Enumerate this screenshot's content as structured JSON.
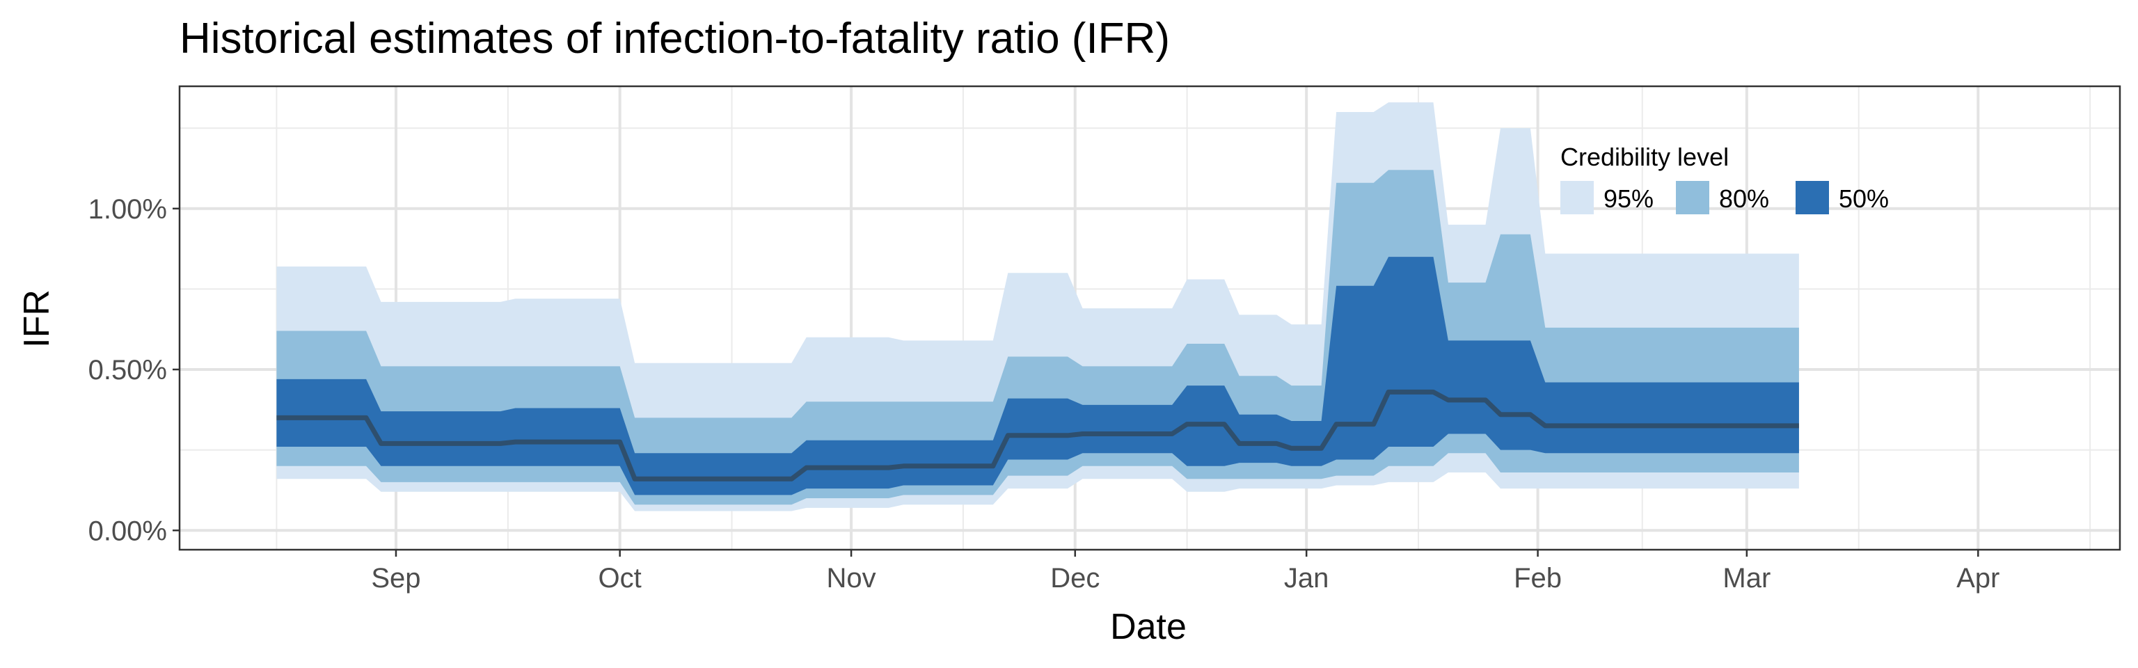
{
  "chart_data": {
    "type": "area",
    "title": "Historical estimates of infection-to-fatality ratio (IFR)",
    "xlabel": "Date",
    "ylabel": "IFR",
    "x_tick_labels": [
      "Sep",
      "Oct",
      "Nov",
      "Dec",
      "Jan",
      "Feb",
      "Mar",
      "Apr"
    ],
    "y_tick_labels": [
      "0.00%",
      "0.50%",
      "1.00%"
    ],
    "y_ticks": [
      0,
      0.5,
      1.0
    ],
    "ylim": [
      -0.06,
      1.38
    ],
    "xlim": [
      "2020-08-03",
      "2021-04-20"
    ],
    "grid": true,
    "legend": {
      "title": "Credibility level",
      "position": "top-right",
      "items": [
        {
          "label": "95%",
          "color": "#d6e5f4"
        },
        {
          "label": "80%",
          "color": "#90bedc"
        },
        {
          "label": "50%",
          "color": "#2b6fb3"
        }
      ]
    },
    "median_color": "#2e4f6e",
    "x": [
      "2020-08-16",
      "2020-08-28",
      "2020-08-30",
      "2020-09-15",
      "2020-09-17",
      "2020-10-01",
      "2020-10-03",
      "2020-10-24",
      "2020-10-26",
      "2020-11-06",
      "2020-11-08",
      "2020-11-20",
      "2020-11-22",
      "2020-11-30",
      "2020-12-02",
      "2020-12-14",
      "2020-12-16",
      "2020-12-21",
      "2020-12-23",
      "2020-12-28",
      "2020-12-30",
      "2021-01-03",
      "2021-01-05",
      "2021-01-10",
      "2021-01-12",
      "2021-01-18",
      "2021-01-20",
      "2021-01-25",
      "2021-01-27",
      "2021-01-31",
      "2021-02-02",
      "2021-03-08"
    ],
    "series": [
      {
        "name": "95%",
        "upper": [
          0.82,
          0.82,
          0.71,
          0.71,
          0.72,
          0.72,
          0.52,
          0.52,
          0.6,
          0.6,
          0.59,
          0.59,
          0.8,
          0.8,
          0.69,
          0.69,
          0.78,
          0.78,
          0.67,
          0.67,
          0.64,
          0.64,
          1.3,
          1.3,
          1.33,
          1.33,
          0.95,
          0.95,
          1.25,
          1.25,
          0.86,
          0.86
        ],
        "lower": [
          0.16,
          0.16,
          0.12,
          0.12,
          0.12,
          0.12,
          0.06,
          0.06,
          0.07,
          0.07,
          0.08,
          0.08,
          0.13,
          0.13,
          0.16,
          0.16,
          0.12,
          0.12,
          0.13,
          0.13,
          0.13,
          0.13,
          0.14,
          0.14,
          0.15,
          0.15,
          0.18,
          0.18,
          0.13,
          0.13,
          0.13,
          0.13
        ]
      },
      {
        "name": "80%",
        "upper": [
          0.62,
          0.62,
          0.51,
          0.51,
          0.51,
          0.51,
          0.35,
          0.35,
          0.4,
          0.4,
          0.4,
          0.4,
          0.54,
          0.54,
          0.51,
          0.51,
          0.58,
          0.58,
          0.48,
          0.48,
          0.45,
          0.45,
          1.08,
          1.08,
          1.12,
          1.12,
          0.77,
          0.77,
          0.92,
          0.92,
          0.63,
          0.63
        ],
        "lower": [
          0.2,
          0.2,
          0.15,
          0.15,
          0.15,
          0.15,
          0.08,
          0.08,
          0.1,
          0.1,
          0.11,
          0.11,
          0.17,
          0.17,
          0.2,
          0.2,
          0.16,
          0.16,
          0.16,
          0.16,
          0.16,
          0.16,
          0.17,
          0.17,
          0.2,
          0.2,
          0.24,
          0.24,
          0.18,
          0.18,
          0.18,
          0.18
        ]
      },
      {
        "name": "50%",
        "upper": [
          0.47,
          0.47,
          0.37,
          0.37,
          0.38,
          0.38,
          0.24,
          0.24,
          0.28,
          0.28,
          0.28,
          0.28,
          0.41,
          0.41,
          0.39,
          0.39,
          0.45,
          0.45,
          0.36,
          0.36,
          0.34,
          0.34,
          0.76,
          0.76,
          0.85,
          0.85,
          0.59,
          0.59,
          0.59,
          0.59,
          0.46,
          0.46
        ],
        "lower": [
          0.26,
          0.26,
          0.2,
          0.2,
          0.2,
          0.2,
          0.11,
          0.11,
          0.13,
          0.13,
          0.14,
          0.14,
          0.22,
          0.22,
          0.24,
          0.24,
          0.2,
          0.2,
          0.21,
          0.21,
          0.2,
          0.2,
          0.22,
          0.22,
          0.26,
          0.26,
          0.3,
          0.3,
          0.25,
          0.25,
          0.24,
          0.24
        ]
      },
      {
        "name": "median",
        "values": [
          0.35,
          0.35,
          0.27,
          0.27,
          0.275,
          0.275,
          0.16,
          0.16,
          0.195,
          0.195,
          0.2,
          0.2,
          0.295,
          0.295,
          0.3,
          0.3,
          0.33,
          0.33,
          0.27,
          0.27,
          0.255,
          0.255,
          0.33,
          0.33,
          0.43,
          0.43,
          0.405,
          0.405,
          0.36,
          0.36,
          0.325,
          0.325
        ]
      }
    ]
  }
}
